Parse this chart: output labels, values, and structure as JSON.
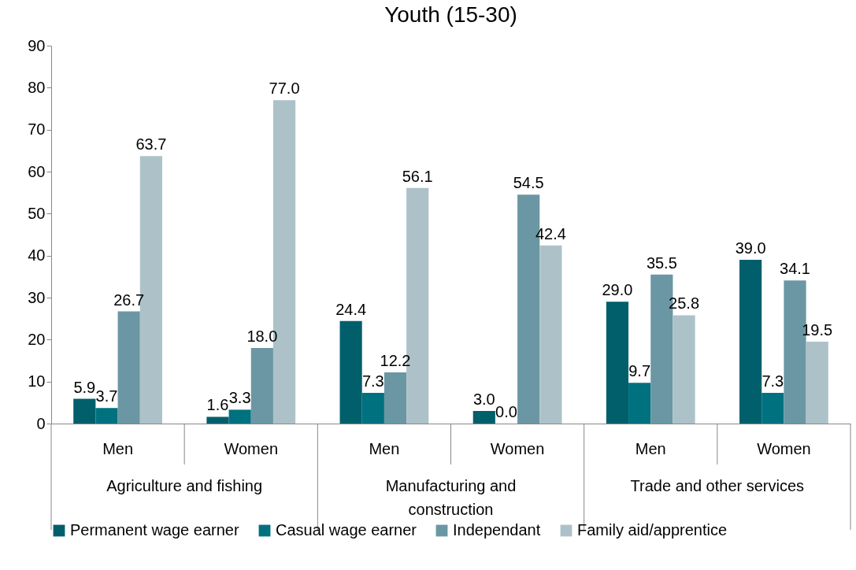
{
  "chart_data": {
    "type": "bar",
    "title": "Youth (15-30)",
    "categories": [
      "Men",
      "Women",
      "Men",
      "Women",
      "Men",
      "Women"
    ],
    "series": [
      {
        "name": "Permanent wage earner",
        "color": "#005f6b",
        "values": [
          5.9,
          1.6,
          24.4,
          3.0,
          29.0,
          39.0
        ],
        "value_labels": [
          "5.9",
          "1.6",
          "24.4",
          "3.0",
          "29.0",
          "39.0"
        ]
      },
      {
        "name": "Casual wage earner",
        "color": "#00717f",
        "values": [
          3.7,
          3.3,
          7.3,
          0.0,
          9.7,
          7.3
        ],
        "value_labels": [
          "3.7",
          "3.3",
          "7.3",
          "0.0",
          "9.7",
          "7.3"
        ]
      },
      {
        "name": "Independant",
        "color": "#6a97a3",
        "values": [
          26.7,
          18.0,
          12.2,
          54.5,
          35.5,
          34.1
        ],
        "value_labels": [
          "26.7",
          "18.0",
          "12.2",
          "54.5",
          "35.5",
          "34.1"
        ]
      },
      {
        "name": "Family aid/apprentice",
        "color": "#adc2c8",
        "values": [
          63.7,
          77.0,
          56.1,
          42.4,
          25.8,
          19.5
        ],
        "value_labels": [
          "63.7",
          "77.0",
          "56.1",
          "42.4",
          "25.8",
          "19.5"
        ]
      }
    ],
    "annotations": [
      "Agriculture and fishing",
      "Manufacturing and construction",
      "Trade and other services"
    ],
    "ylim": [
      0,
      90
    ],
    "yticks": [
      0,
      10,
      20,
      30,
      40,
      50,
      60,
      70,
      80,
      90
    ],
    "grid": false,
    "legend": "bottom"
  }
}
